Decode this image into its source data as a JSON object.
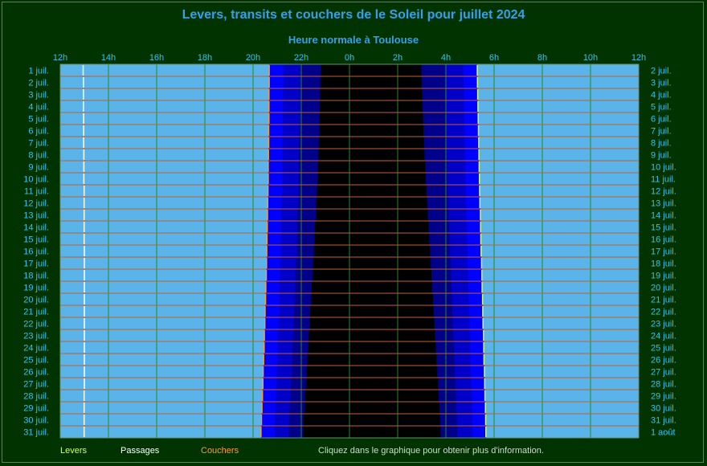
{
  "chart_data": {
    "type": "daylight",
    "title": "Levers, transits et couchers de le Soleil pour juillet 2024",
    "subtitle": "Heure normale à Toulouse",
    "x_ticks": [
      "12h",
      "14h",
      "16h",
      "18h",
      "20h",
      "22h",
      "0h",
      "2h",
      "4h",
      "6h",
      "8h",
      "10h",
      "12h"
    ],
    "x_range_hours": [
      12,
      36
    ],
    "left_labels": [
      "1 juil.",
      "2 juil.",
      "3 juil.",
      "4 juil.",
      "5 juil.",
      "6 juil.",
      "7 juil.",
      "8 juil.",
      "9 juil.",
      "10 juil.",
      "11 juil.",
      "12 juil.",
      "13 juil.",
      "14 juil.",
      "15 juil.",
      "16 juil.",
      "17 juil.",
      "18 juil.",
      "19 juil.",
      "20 juil.",
      "21 juil.",
      "22 juil.",
      "23 juil.",
      "24 juil.",
      "25 juil.",
      "26 juil.",
      "27 juil.",
      "28 juil.",
      "29 juil.",
      "30 juil.",
      "31 juil."
    ],
    "right_labels": [
      "2 juil.",
      "3 juil.",
      "4 juil.",
      "5 juil.",
      "6 juil.",
      "7 juil.",
      "8 juil.",
      "9 juil.",
      "10 juil.",
      "11 juil.",
      "12 juil.",
      "13 juil.",
      "14 juil.",
      "15 juil.",
      "16 juil.",
      "17 juil.",
      "18 juil.",
      "19 juil.",
      "20 juil.",
      "21 juil.",
      "22 juil.",
      "23 juil.",
      "24 juil.",
      "25 juil.",
      "26 juil.",
      "27 juil.",
      "28 juil.",
      "29 juil.",
      "30 juil.",
      "31 juil.",
      "1 août"
    ],
    "transit_hours": [
      12.95,
      12.96,
      12.96,
      12.96,
      12.97,
      12.97,
      12.97,
      12.98,
      12.98,
      12.98,
      12.99,
      12.99,
      12.99,
      12.99,
      12.99,
      13.0,
      13.0,
      13.0,
      13.0,
      13.0,
      13.0,
      13.0,
      13.0,
      13.0,
      13.0,
      13.0,
      13.0,
      12.99,
      12.99,
      12.99,
      12.99
    ],
    "sunset_hours": [
      20.67,
      20.67,
      20.66,
      20.66,
      20.66,
      20.65,
      20.65,
      20.64,
      20.63,
      20.63,
      20.62,
      20.61,
      20.6,
      20.59,
      20.58,
      20.57,
      20.56,
      20.55,
      20.53,
      20.52,
      20.5,
      20.49,
      20.47,
      20.46,
      20.44,
      20.42,
      20.41,
      20.39,
      20.37,
      20.35,
      20.33
    ],
    "sunrise_next_hours": [
      5.3,
      5.31,
      5.32,
      5.33,
      5.34,
      5.35,
      5.36,
      5.37,
      5.38,
      5.39,
      5.4,
      5.41,
      5.43,
      5.44,
      5.45,
      5.46,
      5.48,
      5.49,
      5.5,
      5.52,
      5.53,
      5.54,
      5.56,
      5.57,
      5.58,
      5.6,
      5.61,
      5.62,
      5.64,
      5.65,
      5.66
    ],
    "civil_dusk_hours": [
      21.25,
      21.25,
      21.24,
      21.24,
      21.23,
      21.23,
      21.22,
      21.22,
      21.21,
      21.2,
      21.19,
      21.18,
      21.17,
      21.16,
      21.15,
      21.14,
      21.12,
      21.11,
      21.1,
      21.08,
      21.07,
      21.05,
      21.03,
      21.02,
      21.0,
      20.98,
      20.96,
      20.94,
      20.92,
      20.9,
      20.88
    ],
    "nautical_dusk_hours": [
      21.95,
      21.95,
      21.94,
      21.93,
      21.93,
      21.92,
      21.91,
      21.9,
      21.89,
      21.88,
      21.87,
      21.86,
      21.84,
      21.83,
      21.81,
      21.8,
      21.78,
      21.76,
      21.74,
      21.72,
      21.7,
      21.68,
      21.66,
      21.64,
      21.62,
      21.59,
      21.57,
      21.55,
      21.52,
      21.5,
      21.47
    ],
    "astro_dusk_hours": [
      22.8,
      22.79,
      22.78,
      22.77,
      22.75,
      22.74,
      22.72,
      22.71,
      22.69,
      22.67,
      22.65,
      22.62,
      22.6,
      22.57,
      22.55,
      22.52,
      22.49,
      22.46,
      22.43,
      22.4,
      22.37,
      22.34,
      22.31,
      22.28,
      22.25,
      22.22,
      22.19,
      22.16,
      22.13,
      22.1,
      22.07
    ],
    "astro_dawn_hours": [
      2.98,
      2.99,
      3.01,
      3.03,
      3.05,
      3.07,
      3.09,
      3.11,
      3.14,
      3.16,
      3.19,
      3.22,
      3.25,
      3.28,
      3.31,
      3.34,
      3.37,
      3.4,
      3.43,
      3.46,
      3.49,
      3.52,
      3.55,
      3.58,
      3.61,
      3.64,
      3.67,
      3.7,
      3.73,
      3.76,
      3.78
    ],
    "nautical_dawn_hours": [
      3.95,
      3.96,
      3.97,
      3.98,
      3.99,
      4.0,
      4.02,
      4.03,
      4.05,
      4.06,
      4.08,
      4.1,
      4.11,
      4.13,
      4.15,
      4.17,
      4.19,
      4.21,
      4.23,
      4.25,
      4.27,
      4.29,
      4.31,
      4.33,
      4.35,
      4.37,
      4.39,
      4.41,
      4.43,
      4.45,
      4.47
    ],
    "civil_dawn_hours": [
      4.72,
      4.73,
      4.74,
      4.75,
      4.76,
      4.77,
      4.78,
      4.79,
      4.8,
      4.81,
      4.82,
      4.84,
      4.85,
      4.86,
      4.88,
      4.89,
      4.9,
      4.92,
      4.93,
      4.95,
      4.96,
      4.98,
      4.99,
      5.01,
      5.02,
      5.04,
      5.05,
      5.07,
      5.08,
      5.1,
      5.11
    ],
    "colors": {
      "day": "#5ab4ea",
      "civil": "#0000ff",
      "nautical": "#0000c8",
      "astro": "#00008a",
      "night": "#000000",
      "grid": "#228822",
      "day_line": "#c06030",
      "transit": "#ffffff",
      "sunset": "#ff9933",
      "sunrise": "#ccff66",
      "labels": "#33c3ee",
      "background": "#003300"
    }
  },
  "legend": {
    "rise": "Levers",
    "transit": "Passages",
    "set": "Couchers",
    "info": "Cliquez dans le graphique pour obtenir plus d'information."
  }
}
